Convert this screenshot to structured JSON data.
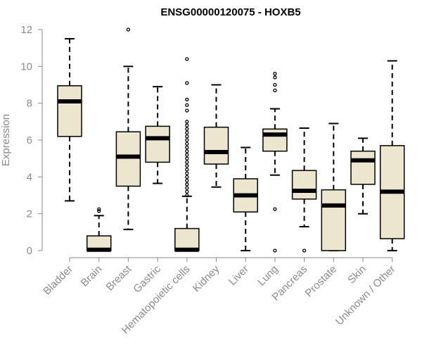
{
  "chart_data": {
    "type": "boxplot",
    "title": "ENSG00000120075 - HOXB5",
    "ylabel": "Expression",
    "xlabel": "",
    "ylim": [
      0,
      12
    ],
    "yticks": [
      0,
      2,
      4,
      6,
      8,
      10,
      12
    ],
    "categories": [
      "Bladder",
      "Brain",
      "Breast",
      "Gastric",
      "Hematopoietic cells",
      "Kidney",
      "Liver",
      "Lung",
      "Pancreas",
      "Prostate",
      "Skin",
      "Unknown / Other"
    ],
    "boxes": [
      {
        "name": "Bladder",
        "whisker_low": 2.7,
        "q1": 6.2,
        "median": 8.1,
        "q3": 8.95,
        "whisker_high": 11.5,
        "outliers": []
      },
      {
        "name": "Brain",
        "whisker_low": 0.0,
        "q1": 0.0,
        "median": 0.05,
        "q3": 0.8,
        "whisker_high": 1.9,
        "outliers": [
          2.15,
          2.25
        ]
      },
      {
        "name": "Breast",
        "whisker_low": 1.15,
        "q1": 3.5,
        "median": 5.1,
        "q3": 6.45,
        "whisker_high": 10.0,
        "outliers": [
          12.0
        ]
      },
      {
        "name": "Gastric",
        "whisker_low": 3.65,
        "q1": 4.8,
        "median": 6.1,
        "q3": 6.75,
        "whisker_high": 8.9,
        "outliers": []
      },
      {
        "name": "Hematopoietic cells",
        "whisker_low": 0.0,
        "q1": 0.0,
        "median": 0.05,
        "q3": 1.2,
        "whisker_high": 2.95,
        "outliers": [
          3.0,
          3.2,
          3.4,
          3.6,
          3.8,
          4.0,
          4.2,
          4.4,
          4.6,
          4.8,
          5.0,
          5.2,
          5.4,
          5.6,
          5.8,
          6.0,
          6.2,
          6.4,
          6.6,
          6.8,
          7.0,
          7.6,
          7.9,
          8.2,
          9.1,
          10.4
        ]
      },
      {
        "name": "Kidney",
        "whisker_low": 3.45,
        "q1": 4.7,
        "median": 5.35,
        "q3": 6.7,
        "whisker_high": 9.0,
        "outliers": []
      },
      {
        "name": "Liver",
        "whisker_low": 0.0,
        "q1": 2.1,
        "median": 3.0,
        "q3": 3.9,
        "whisker_high": 5.6,
        "outliers": []
      },
      {
        "name": "Lung",
        "whisker_low": 4.1,
        "q1": 5.4,
        "median": 6.3,
        "q3": 6.6,
        "whisker_high": 7.7,
        "outliers": [
          0.0,
          2.25,
          8.7,
          9.0,
          9.4,
          9.6
        ]
      },
      {
        "name": "Pancreas",
        "whisker_low": 1.3,
        "q1": 2.8,
        "median": 3.25,
        "q3": 4.35,
        "whisker_high": 6.65,
        "outliers": [
          0.0
        ]
      },
      {
        "name": "Prostate",
        "whisker_low": 0.0,
        "q1": 0.0,
        "median": 2.45,
        "q3": 3.3,
        "whisker_high": 6.9,
        "outliers": []
      },
      {
        "name": "Skin",
        "whisker_low": 2.0,
        "q1": 3.6,
        "median": 4.9,
        "q3": 5.4,
        "whisker_high": 6.1,
        "outliers": []
      },
      {
        "name": "Unknown / Other",
        "whisker_low": 0.0,
        "q1": 0.65,
        "median": 3.2,
        "q3": 5.7,
        "whisker_high": 10.3,
        "outliers": []
      }
    ],
    "grid": false,
    "legend": "none",
    "colors": {
      "box_fill": "#ede6cf",
      "box_stroke": "#000000",
      "median": "#000000",
      "axis": "#8a8a8a",
      "title": "#000000"
    }
  }
}
